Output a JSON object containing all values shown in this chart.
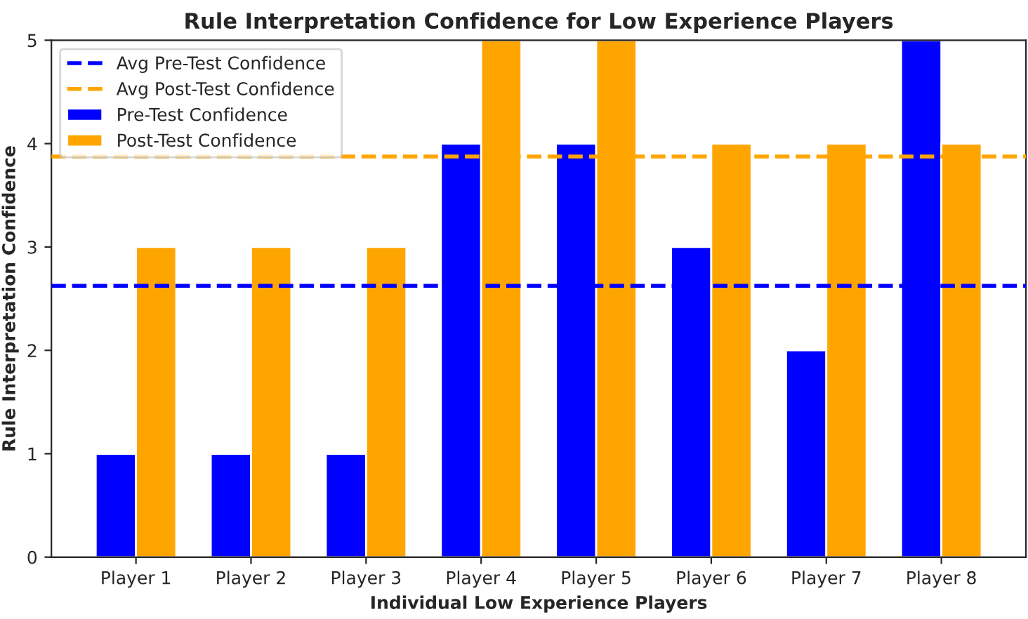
{
  "chart_data": {
    "type": "bar",
    "title": "Rule Interpretation Confidence for Low Experience Players",
    "xlabel": "Individual Low Experience Players",
    "ylabel": "Rule Interpretation Confidence",
    "categories": [
      "Player 1",
      "Player 2",
      "Player 3",
      "Player 4",
      "Player 5",
      "Player 6",
      "Player 7",
      "Player 8"
    ],
    "series": [
      {
        "name": "Pre-Test Confidence",
        "color": "#0000ff",
        "values": [
          1,
          1,
          1,
          4,
          4,
          3,
          2,
          5
        ]
      },
      {
        "name": "Post-Test Confidence",
        "color": "#ffa500",
        "values": [
          3,
          3,
          3,
          5,
          5,
          4,
          4,
          4
        ]
      }
    ],
    "ref_lines": [
      {
        "axis": "y",
        "value": 2.625,
        "label": "Avg Pre-Test Confidence",
        "color": "#0000ff",
        "line_style": "dashed"
      },
      {
        "axis": "y",
        "value": 3.875,
        "label": "Avg Post-Test Confidence",
        "color": "#ffa500",
        "line_style": "dashed"
      }
    ],
    "ylim": [
      0,
      5
    ],
    "yticks": [
      0,
      1,
      2,
      3,
      4,
      5
    ],
    "grid": false,
    "legend": "top left"
  }
}
